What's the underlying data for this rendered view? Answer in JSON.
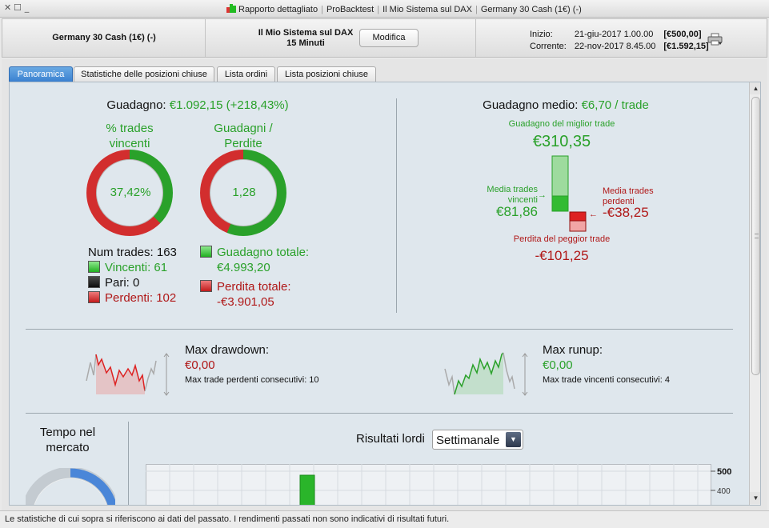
{
  "window": {
    "controls": [
      "✕",
      "☐",
      "_"
    ],
    "title_parts": [
      "Rapporto dettagliato",
      "ProBacktest",
      "Il Mio Sistema sul DAX",
      "Germany 30 Cash (1€) (-)"
    ],
    "title_icon": "candlestick-chart-icon"
  },
  "header": {
    "instrument": "Germany 30 Cash (1€) (-)",
    "system_name": "Il Mio Sistema sul DAX",
    "timeframe": "15 Minuti",
    "modify_label": "Modifica",
    "start_label": "Inizio:",
    "start_date": "21-giu-2017 1.00.00",
    "start_value": "[€500,00]",
    "current_label": "Corrente:",
    "current_date": "22-nov-2017 8.45.00",
    "current_value": "[€1.592,15]",
    "print_icon": "printer-icon"
  },
  "tabs": [
    {
      "label": "Panoramica",
      "active": true
    },
    {
      "label": "Statistiche delle posizioni chiuse",
      "active": false
    },
    {
      "label": "Lista ordini",
      "active": false
    },
    {
      "label": "Lista posizioni chiuse",
      "active": false
    }
  ],
  "overview": {
    "gain_label": "Guadagno:",
    "gain_value": "€1.092,15 (+218,43%)",
    "win_pct_title_1": "% trades",
    "win_pct_title_2": "vincenti",
    "win_pct_value": "37,42%",
    "win_fraction": 0.3742,
    "gl_title_1": "Guadagni /",
    "gl_title_2": "Perdite",
    "gl_value": "1,28",
    "gl_gain_share": 0.5614,
    "num_trades": "Num trades: 163",
    "winners": "Vincenti: 61",
    "even": "Pari: 0",
    "losers": "Perdenti: 102",
    "total_gain_label": "Guadagno totale:",
    "total_gain_value": "€4.993,20",
    "total_loss_label": "Perdita totale:",
    "total_loss_value": "-€3.901,05"
  },
  "average": {
    "label": "Guadagno medio:",
    "value": "€6,70 / trade",
    "best_label": "Guadagno del miglior trade",
    "best_value": "€310,35",
    "avg_win_label_1": "Media trades",
    "avg_win_label_2": "vincenti",
    "avg_win_value": "€81,86",
    "avg_loss_label_1": "Media trades",
    "avg_loss_label_2": "perdenti",
    "avg_loss_value": "-€38,25",
    "worst_label": "Perdita del peggior trade",
    "worst_value": "-€101,25"
  },
  "drawdown": {
    "title": "Max drawdown:",
    "value": "€0,00",
    "consecutive": "Max trade perdenti consecutivi:  10"
  },
  "runup": {
    "title": "Max runup:",
    "value": "€0,00",
    "consecutive": "Max trade vincenti consecutivi: 4"
  },
  "time_in_market": {
    "title_1": "Tempo nel",
    "title_2": "mercato"
  },
  "gross_results": {
    "title": "Risultati lordi",
    "period": "Settimanale",
    "axis_labels": [
      "500",
      "400"
    ]
  },
  "footer": {
    "text": "Le statistiche di cui sopra si riferiscono ai dati del passato. I rendimenti passati non sono indicativi di risultati futuri."
  },
  "colors": {
    "gain": "#2aa12a",
    "loss": "#b01818",
    "active_tab": "#3a81d1"
  }
}
